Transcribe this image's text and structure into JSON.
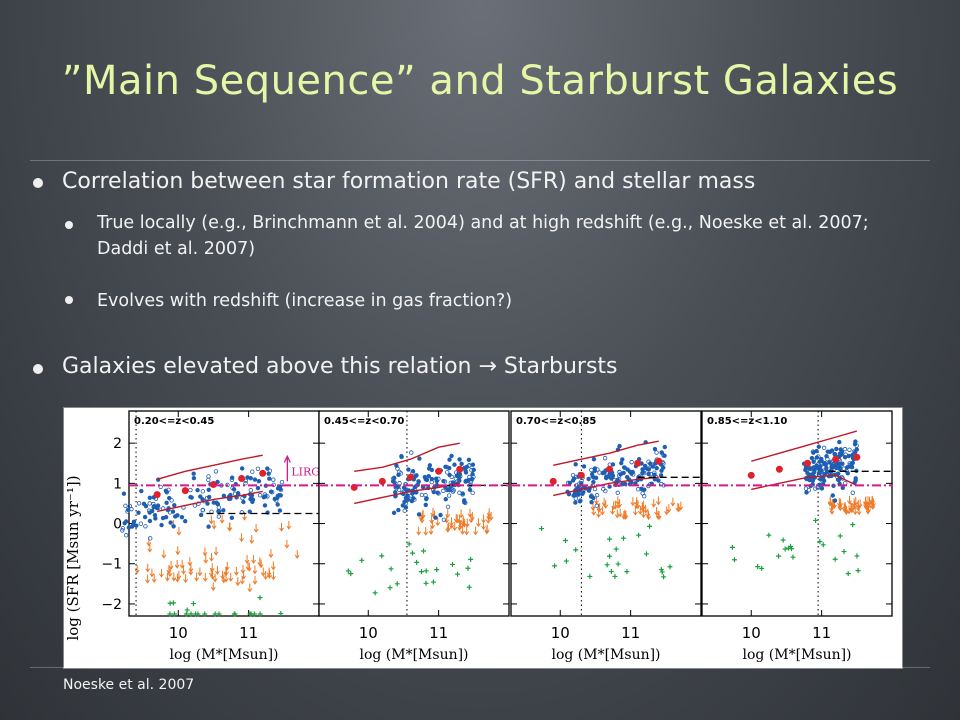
{
  "slide": {
    "title": "”Main Sequence” and Starburst Galaxies",
    "bullets": [
      "Correlation between star formation rate (SFR) and stellar mass",
      "True locally (e.g., Brinchmann et al. 2004) and at high redshift (e.g., Noeske et al. 2007; Daddi et al. 2007)",
      "Evolves with redshift (increase in gas fraction?)",
      "Galaxies elevated above this relation → Starbursts"
    ],
    "caption": "Noeske et al. 2007"
  },
  "chart_data": {
    "type": "scatter",
    "panels": [
      "0.20<=z<0.45",
      "0.45<=z<0.70",
      "0.70<=z<0.85",
      "0.85<=z<1.10"
    ],
    "xlabel": "log  (M*[Msun])",
    "ylabel": "log  (SFR [Msun yr⁻¹])",
    "xticks": [
      10,
      11
    ],
    "yticks": [
      -2,
      -1,
      0,
      1,
      2
    ],
    "yticklabels": [
      "−2",
      "−1",
      "0",
      "1",
      "2"
    ],
    "xlim": [
      9.3,
      12.0
    ],
    "ylim": [
      -2.3,
      2.8
    ],
    "lirg_label": "LIRGs",
    "lirg_threshold_logSFR": 0.95,
    "colors": {
      "star_forming": "#1f5fb3",
      "median_points": "#e0202a",
      "envelope": "#c0182a",
      "upper_limits": "#f07a28",
      "green_crosses": "#1aa03c",
      "lirg_line": "#d4198a",
      "reference_line": "#000000"
    },
    "series": [
      {
        "ms_slope": 0.35,
        "ms_intercept": 0.45,
        "ms_scatter": 0.28,
        "median_x": [
          9.7,
          10.1,
          10.5,
          10.9,
          11.2
        ],
        "median_y": [
          0.72,
          0.82,
          0.97,
          1.12,
          1.25
        ],
        "envelope_upper_x": [
          9.7,
          10.1,
          10.5,
          10.9,
          11.2
        ],
        "envelope_upper_y": [
          1.1,
          1.3,
          1.45,
          1.6,
          1.7
        ],
        "envelope_lower_x": [
          9.7,
          10.1,
          10.5,
          10.9,
          11.2
        ],
        "envelope_lower_y": [
          0.3,
          0.45,
          0.6,
          0.7,
          0.8
        ],
        "dashed_level": 0.25,
        "limits_band": [
          0.2,
          -1.6
        ],
        "mass_completeness": 9.4
      },
      {
        "ms_slope": 0.35,
        "ms_intercept": 0.65,
        "ms_scatter": 0.28,
        "median_x": [
          9.8,
          10.2,
          10.6,
          11.0,
          11.3
        ],
        "median_y": [
          0.9,
          1.05,
          1.15,
          1.3,
          1.35
        ],
        "envelope_upper_x": [
          9.8,
          10.2,
          10.6,
          11.0,
          11.3
        ],
        "envelope_upper_y": [
          1.3,
          1.4,
          1.6,
          1.9,
          2.0
        ],
        "envelope_lower_x": [
          9.8,
          10.2,
          10.6,
          11.0,
          11.3
        ],
        "envelope_lower_y": [
          0.5,
          0.65,
          0.8,
          0.9,
          1.0
        ],
        "dashed_level": 0.95,
        "limits_band": [
          0.3,
          -0.2
        ],
        "mass_completeness": 10.55
      },
      {
        "ms_slope": 0.35,
        "ms_intercept": 0.85,
        "ms_scatter": 0.28,
        "median_x": [
          9.9,
          10.3,
          10.7,
          11.1,
          11.4
        ],
        "median_y": [
          1.05,
          1.2,
          1.35,
          1.5,
          1.55
        ],
        "envelope_upper_x": [
          9.9,
          10.3,
          10.7,
          11.1,
          11.4
        ],
        "envelope_upper_y": [
          1.45,
          1.6,
          1.75,
          1.95,
          2.05
        ],
        "envelope_lower_x": [
          9.9,
          10.3,
          10.7,
          11.1,
          11.4
        ],
        "envelope_lower_y": [
          0.7,
          0.85,
          1.0,
          1.1,
          1.15
        ],
        "dashed_level": 1.15,
        "limits_band": [
          0.6,
          0.2
        ],
        "mass_completeness": 10.3
      },
      {
        "ms_slope": 0.35,
        "ms_intercept": 1.0,
        "ms_scatter": 0.25,
        "median_x": [
          10.0,
          10.4,
          10.8,
          11.2,
          11.5
        ],
        "median_y": [
          1.2,
          1.35,
          1.5,
          1.6,
          1.65
        ],
        "envelope_upper_x": [
          10.0,
          10.4,
          10.8,
          11.2,
          11.5
        ],
        "envelope_upper_y": [
          1.55,
          1.75,
          1.95,
          2.15,
          2.3
        ],
        "envelope_lower_x": [
          10.0,
          10.4,
          10.8,
          11.2,
          11.5
        ],
        "envelope_lower_y": [
          0.85,
          1.0,
          1.15,
          1.2,
          0.95
        ],
        "dashed_level": 1.3,
        "limits_band": [
          0.6,
          0.3
        ],
        "mass_completeness": 10.95
      }
    ]
  }
}
